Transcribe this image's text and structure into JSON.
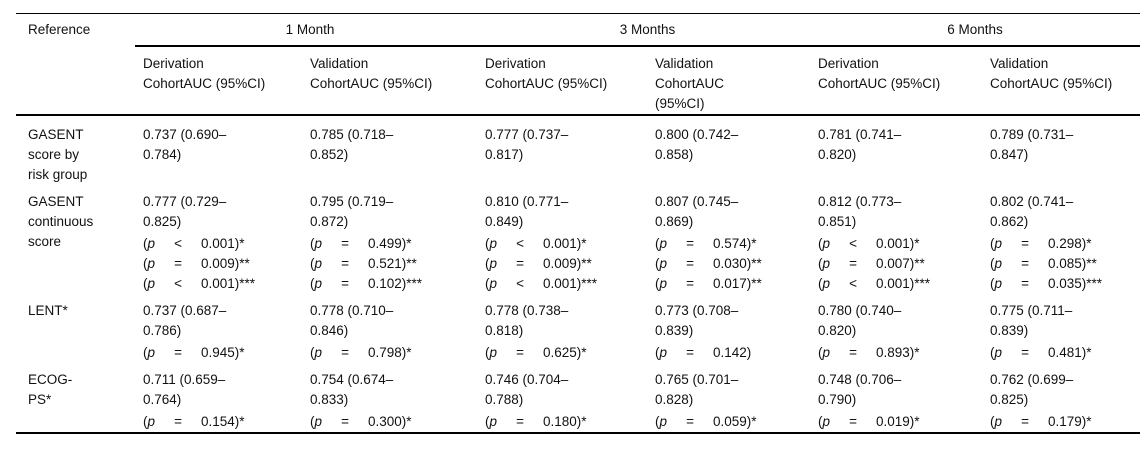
{
  "table": {
    "columns": {
      "reference_label": "Reference",
      "groups": [
        {
          "label": "1 Month"
        },
        {
          "label": "3 Months"
        },
        {
          "label": "6 Months"
        }
      ],
      "subheaders": [
        [
          "Derivation",
          "CohortAUC (95%CI)"
        ],
        [
          "Validation",
          "CohortAUC (95%CI)"
        ],
        [
          "Derivation",
          "CohortAUC (95%CI)"
        ],
        [
          "Validation",
          "CohortAUC",
          "(95%CI)"
        ],
        [
          "Derivation",
          "CohortAUC (95%CI)"
        ],
        [
          "Validation",
          "CohortAUC (95%CI)"
        ]
      ]
    },
    "p_line_format": {
      "open": "(",
      "symbol": "p"
    },
    "rows": [
      {
        "label_lines": [
          "GASENT",
          "score by",
          "risk group"
        ],
        "cells": [
          {
            "auc_lines": [
              "0.737 (0.690–",
              "0.784)"
            ],
            "p_lines": []
          },
          {
            "auc_lines": [
              "0.785 (0.718–",
              "0.852)"
            ],
            "p_lines": []
          },
          {
            "auc_lines": [
              "0.777 (0.737–",
              "0.817)"
            ],
            "p_lines": []
          },
          {
            "auc_lines": [
              "0.800 (0.742–",
              "0.858)"
            ],
            "p_lines": []
          },
          {
            "auc_lines": [
              "0.781 (0.741–",
              "0.820)"
            ],
            "p_lines": []
          },
          {
            "auc_lines": [
              "0.789 (0.731–",
              "0.847)"
            ],
            "p_lines": []
          }
        ]
      },
      {
        "label_lines": [
          "GASENT",
          "continuous",
          "score"
        ],
        "cells": [
          {
            "auc_lines": [
              "0.777 (0.729–",
              "0.825)"
            ],
            "p_lines": [
              {
                "op": "<",
                "rest": "0.001)*"
              },
              {
                "op": "=",
                "rest": "0.009)**"
              },
              {
                "op": "<",
                "rest": "0.001)***"
              }
            ]
          },
          {
            "auc_lines": [
              "0.795 (0.719–",
              "0.872)"
            ],
            "p_lines": [
              {
                "op": "=",
                "rest": "0.499)*"
              },
              {
                "op": "=",
                "rest": "0.521)**"
              },
              {
                "op": "=",
                "rest": "0.102)***"
              }
            ]
          },
          {
            "auc_lines": [
              "0.810 (0.771–",
              "0.849)"
            ],
            "p_lines": [
              {
                "op": "<",
                "rest": "0.001)*"
              },
              {
                "op": "=",
                "rest": "0.009)**"
              },
              {
                "op": "<",
                "rest": "0.001)***"
              }
            ]
          },
          {
            "auc_lines": [
              "0.807 (0.745–",
              "0.869)"
            ],
            "p_lines": [
              {
                "op": "=",
                "rest": "0.574)*"
              },
              {
                "op": "=",
                "rest": "0.030)**"
              },
              {
                "op": "=",
                "rest": "0.017)**"
              }
            ]
          },
          {
            "auc_lines": [
              "0.812 (0.773–",
              "0.851)"
            ],
            "p_lines": [
              {
                "op": "<",
                "rest": "0.001)*"
              },
              {
                "op": "=",
                "rest": "0.007)**"
              },
              {
                "op": "<",
                "rest": "0.001)***"
              }
            ]
          },
          {
            "auc_lines": [
              "0.802 (0.741–",
              "0.862)"
            ],
            "p_lines": [
              {
                "op": "=",
                "rest": "0.298)*"
              },
              {
                "op": "=",
                "rest": "0.085)**"
              },
              {
                "op": "=",
                "rest": "0.035)***"
              }
            ]
          }
        ]
      },
      {
        "label_lines": [
          "LENT*"
        ],
        "cells": [
          {
            "auc_lines": [
              "0.737 (0.687–",
              "0.786)"
            ],
            "p_lines": [
              {
                "op": "=",
                "rest": "0.945)*"
              }
            ]
          },
          {
            "auc_lines": [
              "0.778 (0.710–",
              "0.846)"
            ],
            "p_lines": [
              {
                "op": "=",
                "rest": "0.798)*"
              }
            ]
          },
          {
            "auc_lines": [
              "0.778 (0.738–",
              "0.818)"
            ],
            "p_lines": [
              {
                "op": "=",
                "rest": "0.625)*"
              }
            ]
          },
          {
            "auc_lines": [
              "0.773 (0.708–",
              "0.839)"
            ],
            "p_lines": [
              {
                "op": "=",
                "rest": "0.142)"
              }
            ]
          },
          {
            "auc_lines": [
              "0.780 (0.740–",
              "0.820)"
            ],
            "p_lines": [
              {
                "op": "=",
                "rest": "0.893)*"
              }
            ]
          },
          {
            "auc_lines": [
              "0.775 (0.711–",
              "0.839)"
            ],
            "p_lines": [
              {
                "op": "=",
                "rest": "0.481)*"
              }
            ]
          }
        ]
      },
      {
        "label_lines": [
          "ECOG-",
          "PS*"
        ],
        "cells": [
          {
            "auc_lines": [
              "0.711 (0.659–",
              "0.764)"
            ],
            "p_lines": [
              {
                "op": "=",
                "rest": "0.154)*"
              }
            ]
          },
          {
            "auc_lines": [
              "0.754 (0.674–",
              "0.833)"
            ],
            "p_lines": [
              {
                "op": "=",
                "rest": "0.300)*"
              }
            ]
          },
          {
            "auc_lines": [
              "0.746 (0.704–",
              "0.788)"
            ],
            "p_lines": [
              {
                "op": "=",
                "rest": "0.180)*"
              }
            ]
          },
          {
            "auc_lines": [
              "0.765 (0.701–",
              "0.828)"
            ],
            "p_lines": [
              {
                "op": "=",
                "rest": "0.059)*"
              }
            ]
          },
          {
            "auc_lines": [
              "0.748 (0.706–",
              "0.790)"
            ],
            "p_lines": [
              {
                "op": "=",
                "rest": "0.019)*"
              }
            ]
          },
          {
            "auc_lines": [
              "0.762 (0.699–",
              "0.825)"
            ],
            "p_lines": [
              {
                "op": "=",
                "rest": "0.179)*"
              }
            ]
          }
        ]
      }
    ]
  }
}
